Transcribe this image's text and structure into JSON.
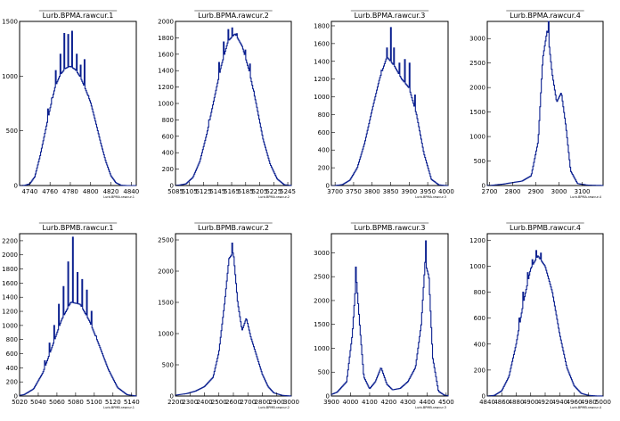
{
  "chart_data": [
    {
      "type": "bar",
      "title": "Lurb.BPMA.rawcur.1",
      "xlabel": "Lurb.BPMA.rawcur.1",
      "xlim": [
        4730,
        4845
      ],
      "ylim": [
        0,
        1500
      ],
      "xticks": [
        "4740",
        "4760",
        "4780",
        "4800",
        "4820",
        "4840"
      ],
      "yticks": [
        "0",
        "500",
        "1000",
        "1500"
      ],
      "x": [
        4735,
        4740,
        4745,
        4750,
        4755,
        4760,
        4765,
        4770,
        4775,
        4780,
        4785,
        4790,
        4795,
        4800,
        4805,
        4810,
        4815,
        4820,
        4825,
        4830
      ],
      "values": [
        2,
        15,
        80,
        260,
        480,
        700,
        900,
        1010,
        1070,
        1090,
        1060,
        990,
        880,
        760,
        580,
        390,
        220,
        90,
        25,
        3
      ],
      "spikes": [
        [
          4758,
          700
        ],
        [
          4762,
          800
        ],
        [
          4766,
          1050
        ],
        [
          4770,
          1200
        ],
        [
          4774,
          1390
        ],
        [
          4778,
          1380
        ],
        [
          4782,
          1410
        ],
        [
          4786,
          1200
        ],
        [
          4790,
          1100
        ],
        [
          4794,
          1150
        ],
        [
          4798,
          820
        ]
      ]
    },
    {
      "type": "bar",
      "title": "Lurb.BPMA.rawcur.2",
      "xlabel": "Lurb.BPMA.rawcur.2",
      "xlim": [
        5085,
        5250
      ],
      "ylim": [
        0,
        2000
      ],
      "xticks": [
        "5085",
        "5105",
        "5125",
        "5145",
        "5165",
        "5185",
        "5205",
        "5225",
        "5245"
      ],
      "yticks": [
        "0",
        "200",
        "400",
        "600",
        "800",
        "1000",
        "1200",
        "1400",
        "1600",
        "1800",
        "2000"
      ],
      "x": [
        5090,
        5100,
        5110,
        5120,
        5130,
        5140,
        5150,
        5160,
        5170,
        5180,
        5190,
        5200,
        5210,
        5220,
        5230,
        5240
      ],
      "values": [
        5,
        20,
        100,
        300,
        640,
        1050,
        1450,
        1760,
        1850,
        1700,
        1400,
        1000,
        560,
        260,
        80,
        10
      ],
      "spikes": [
        [
          5125,
          400
        ],
        [
          5133,
          800
        ],
        [
          5140,
          1150
        ],
        [
          5147,
          1500
        ],
        [
          5154,
          1750
        ],
        [
          5160,
          1900
        ],
        [
          5166,
          1920
        ],
        [
          5172,
          1850
        ],
        [
          5178,
          1700
        ],
        [
          5185,
          1650
        ],
        [
          5191,
          1480
        ],
        [
          5197,
          1150
        ],
        [
          5203,
          750
        ]
      ]
    },
    {
      "type": "bar",
      "title": "Lurb.BPMA.rawcur.3",
      "xlabel": "Lurb.BPMA.rawcur.3",
      "xlim": [
        3690,
        4005
      ],
      "ylim": [
        0,
        1850
      ],
      "xticks": [
        "3700",
        "3750",
        "3800",
        "3850",
        "3900",
        "3950",
        "4000"
      ],
      "yticks": [
        "0",
        "200",
        "400",
        "600",
        "800",
        "1000",
        "1200",
        "1400",
        "1600",
        "1800"
      ],
      "x": [
        3720,
        3740,
        3760,
        3780,
        3800,
        3820,
        3840,
        3860,
        3880,
        3900,
        3920,
        3940,
        3960,
        3980
      ],
      "values": [
        10,
        60,
        200,
        480,
        850,
        1200,
        1450,
        1350,
        1200,
        1100,
        800,
        360,
        70,
        8
      ],
      "spikes": [
        [
          3812,
          1000
        ],
        [
          3826,
          1300
        ],
        [
          3840,
          1550
        ],
        [
          3850,
          1780
        ],
        [
          3860,
          1550
        ],
        [
          3874,
          1380
        ],
        [
          3888,
          1420
        ],
        [
          3902,
          1380
        ],
        [
          3916,
          1020
        ]
      ]
    },
    {
      "type": "bar",
      "title": "Lurb.BPMA.rawcur.4",
      "xlabel": "Lurb.BPMA.rawcur.4",
      "xlim": [
        2690,
        3190
      ],
      "ylim": [
        0,
        3350
      ],
      "xticks": [
        "2700",
        "2800",
        "2900",
        "3000",
        "3100"
      ],
      "yticks": [
        "0",
        "500",
        "1000",
        "1500",
        "2000",
        "2500",
        "3000"
      ],
      "x": [
        2710,
        2760,
        2800,
        2840,
        2880,
        2910,
        2930,
        2950,
        2970,
        2990,
        3010,
        3030,
        3050,
        3080,
        3120,
        3170
      ],
      "values": [
        5,
        30,
        60,
        90,
        200,
        900,
        2600,
        3200,
        2300,
        1700,
        1900,
        1200,
        300,
        40,
        10,
        3
      ],
      "spikes": [
        [
          2955,
          3500
        ]
      ]
    },
    {
      "type": "bar",
      "title": "Lurb.BPMB.rawcur.1",
      "xlabel": "Lurb.BPMB.rawcur.1",
      "xlim": [
        5020,
        5145
      ],
      "ylim": [
        0,
        2300
      ],
      "xticks": [
        "5020",
        "5040",
        "5060",
        "5080",
        "5100",
        "5120",
        "5140"
      ],
      "yticks": [
        "0",
        "200",
        "400",
        "600",
        "800",
        "1000",
        "1200",
        "1400",
        "1600",
        "1800",
        "2000",
        "2200"
      ],
      "x": [
        5025,
        5035,
        5045,
        5055,
        5065,
        5075,
        5085,
        5095,
        5105,
        5115,
        5125,
        5135
      ],
      "values": [
        20,
        100,
        330,
        700,
        1080,
        1330,
        1300,
        1060,
        730,
        380,
        120,
        20
      ],
      "spikes": [
        [
          5047,
          500
        ],
        [
          5052,
          750
        ],
        [
          5057,
          1000
        ],
        [
          5062,
          1300
        ],
        [
          5067,
          1550
        ],
        [
          5072,
          1900
        ],
        [
          5077,
          2250
        ],
        [
          5082,
          1750
        ],
        [
          5087,
          1650
        ],
        [
          5092,
          1500
        ],
        [
          5097,
          1200
        ],
        [
          5102,
          850
        ]
      ]
    },
    {
      "type": "bar",
      "title": "Lurb.BPMB.rawcur.2",
      "xlabel": "Lurb.BPMB.rawcur.2",
      "xlim": [
        2200,
        3000
      ],
      "ylim": [
        0,
        2600
      ],
      "xticks": [
        "2200",
        "2300",
        "2400",
        "2500",
        "2600",
        "2700",
        "2800",
        "2900",
        "3000"
      ],
      "yticks": [
        "0",
        "500",
        "1000",
        "1500",
        "2000",
        "2500"
      ],
      "x": [
        2220,
        2280,
        2340,
        2400,
        2460,
        2500,
        2540,
        2570,
        2600,
        2630,
        2660,
        2690,
        2720,
        2760,
        2800,
        2840,
        2880,
        2940
      ],
      "values": [
        20,
        40,
        80,
        150,
        300,
        700,
        1500,
        2200,
        2300,
        1500,
        1050,
        1250,
        950,
        650,
        350,
        150,
        50,
        10
      ],
      "spikes": [
        [
          2590,
          2450
        ]
      ]
    },
    {
      "type": "bar",
      "title": "Lurb.BPMB.rawcur.3",
      "xlabel": "Lurb.BPMB.rawcur.3",
      "xlim": [
        3900,
        4510
      ],
      "ylim": [
        0,
        3400
      ],
      "xticks": [
        "3900",
        "4000",
        "4100",
        "4200",
        "4300",
        "4400",
        "4500"
      ],
      "yticks": [
        "0",
        "500",
        "1000",
        "1500",
        "2000",
        "2500",
        "3000"
      ],
      "x": [
        3930,
        3980,
        4010,
        4030,
        4050,
        4070,
        4100,
        4130,
        4160,
        4190,
        4220,
        4260,
        4300,
        4340,
        4370,
        4390,
        4410,
        4430,
        4460,
        4490
      ],
      "values": [
        80,
        300,
        1300,
        2500,
        1400,
        400,
        150,
        300,
        600,
        250,
        130,
        160,
        300,
        600,
        1500,
        2800,
        2500,
        800,
        100,
        20
      ],
      "spikes": [
        [
          4030,
          2700
        ],
        [
          4395,
          3250
        ]
      ]
    },
    {
      "type": "bar",
      "title": "Lurb.BPMB.rawcur.4",
      "xlabel": "Lurb.BPMB.rawcur.4",
      "xlim": [
        4840,
        5000
      ],
      "ylim": [
        0,
        1250
      ],
      "xticks": [
        "4840",
        "4860",
        "4880",
        "4900",
        "4920",
        "4940",
        "4960",
        "4980",
        "5000"
      ],
      "yticks": [
        "0",
        "200",
        "400",
        "600",
        "800",
        "1000",
        "1200"
      ],
      "x": [
        4850,
        4860,
        4870,
        4880,
        4890,
        4900,
        4910,
        4920,
        4930,
        4940,
        4950,
        4960,
        4970,
        4980,
        4990
      ],
      "values": [
        5,
        40,
        150,
        400,
        720,
        980,
        1080,
        1000,
        800,
        480,
        220,
        80,
        20,
        5,
        1
      ],
      "spikes": [
        [
          4884,
          600
        ],
        [
          4890,
          800
        ],
        [
          4896,
          950
        ],
        [
          4902,
          1050
        ],
        [
          4908,
          1120
        ],
        [
          4914,
          1100
        ],
        [
          4920,
          1000
        ],
        [
          4926,
          850
        ],
        [
          4932,
          620
        ]
      ]
    }
  ]
}
